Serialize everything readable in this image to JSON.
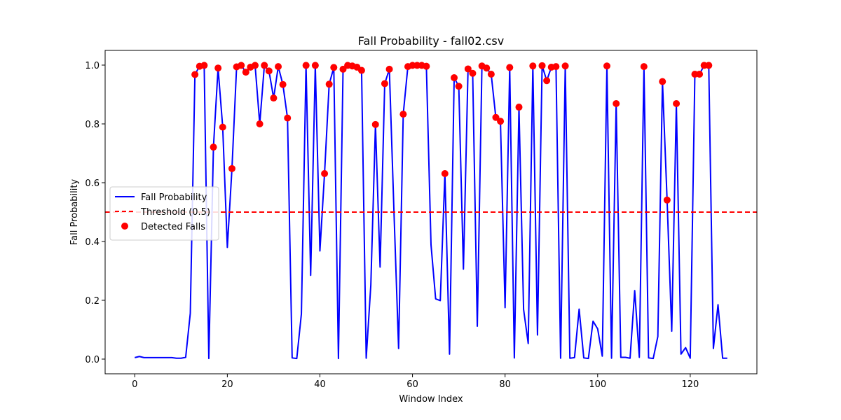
{
  "chart_data": {
    "type": "line",
    "title": "Fall Probability - fall02.csv",
    "xlabel": "Window Index",
    "ylabel": "Fall Probability",
    "xlim": [
      -6.4,
      134.4
    ],
    "ylim": [
      -0.05,
      1.05
    ],
    "x_ticks": [
      0,
      20,
      40,
      60,
      80,
      100,
      120
    ],
    "y_ticks": [
      0.0,
      0.2,
      0.4,
      0.6,
      0.8,
      1.0
    ],
    "x_tick_labels": [
      "0",
      "20",
      "40",
      "60",
      "80",
      "100",
      "120"
    ],
    "y_tick_labels": [
      "0.0",
      "0.2",
      "0.4",
      "0.6",
      "0.8",
      "1.0"
    ],
    "grid": false,
    "legend_position": "center-left",
    "series": [
      {
        "name": "Fall Probability",
        "kind": "line",
        "color": "#0000ff",
        "values": [
          0.005,
          0.009,
          0.005,
          0.005,
          0.005,
          0.005,
          0.005,
          0.005,
          0.005,
          0.003,
          0.003,
          0.006,
          0.156,
          0.968,
          0.996,
          0.999,
          0.002,
          0.721,
          0.99,
          0.789,
          0.38,
          0.648,
          0.994,
          0.999,
          0.976,
          0.993,
          0.999,
          0.8,
          0.999,
          0.98,
          0.888,
          0.995,
          0.934,
          0.82,
          0.004,
          0.002,
          0.154,
          0.999,
          0.285,
          0.999,
          0.368,
          0.631,
          0.935,
          0.992,
          0.002,
          0.986,
          0.999,
          0.997,
          0.993,
          0.982,
          0.003,
          0.252,
          0.798,
          0.313,
          0.937,
          0.986,
          0.5,
          0.036,
          0.833,
          0.995,
          0.999,
          0.999,
          0.999,
          0.996,
          0.389,
          0.205,
          0.199,
          0.631,
          0.017,
          0.957,
          0.928,
          0.306,
          0.987,
          0.972,
          0.112,
          0.997,
          0.99,
          0.969,
          0.822,
          0.809,
          0.175,
          0.992,
          0.004,
          0.857,
          0.169,
          0.053,
          0.997,
          0.082,
          0.998,
          0.947,
          0.993,
          0.995,
          0.003,
          0.997,
          0.003,
          0.005,
          0.17,
          0.004,
          0.002,
          0.129,
          0.103,
          0.01,
          0.997,
          0.003,
          0.869,
          0.006,
          0.006,
          0.003,
          0.233,
          0.006,
          0.995,
          0.004,
          0.002,
          0.077,
          0.944,
          0.541,
          0.095,
          0.869,
          0.017,
          0.039,
          0.003,
          0.969,
          0.969,
          0.999,
          0.999,
          0.036,
          0.185,
          0.003,
          0.003
        ]
      },
      {
        "name": "Threshold (0.5)",
        "kind": "hline",
        "color": "#ff0000",
        "y": 0.5
      },
      {
        "name": "Detected Falls",
        "kind": "scatter",
        "color": "#ff0000",
        "x": [
          13,
          14,
          15,
          17,
          18,
          19,
          21,
          22,
          23,
          24,
          25,
          26,
          27,
          28,
          29,
          30,
          31,
          32,
          33,
          37,
          39,
          41,
          42,
          43,
          45,
          46,
          47,
          48,
          49,
          52,
          54,
          55,
          58,
          59,
          60,
          61,
          62,
          63,
          67,
          69,
          70,
          72,
          73,
          75,
          76,
          77,
          78,
          79,
          81,
          83,
          86,
          88,
          89,
          90,
          91,
          93,
          102,
          104,
          110,
          114,
          115,
          117,
          121,
          122,
          123,
          124
        ],
        "y": [
          0.968,
          0.996,
          0.999,
          0.721,
          0.99,
          0.789,
          0.648,
          0.994,
          0.999,
          0.976,
          0.993,
          0.999,
          0.8,
          0.999,
          0.98,
          0.888,
          0.995,
          0.934,
          0.82,
          0.999,
          0.999,
          0.631,
          0.935,
          0.992,
          0.986,
          0.999,
          0.997,
          0.993,
          0.982,
          0.798,
          0.937,
          0.986,
          0.833,
          0.995,
          0.999,
          0.999,
          0.999,
          0.996,
          0.631,
          0.957,
          0.928,
          0.987,
          0.972,
          0.997,
          0.99,
          0.969,
          0.822,
          0.809,
          0.992,
          0.857,
          0.997,
          0.998,
          0.947,
          0.993,
          0.995,
          0.997,
          0.997,
          0.869,
          0.995,
          0.944,
          0.541,
          0.869,
          0.969,
          0.969,
          0.999,
          0.999
        ]
      }
    ]
  }
}
